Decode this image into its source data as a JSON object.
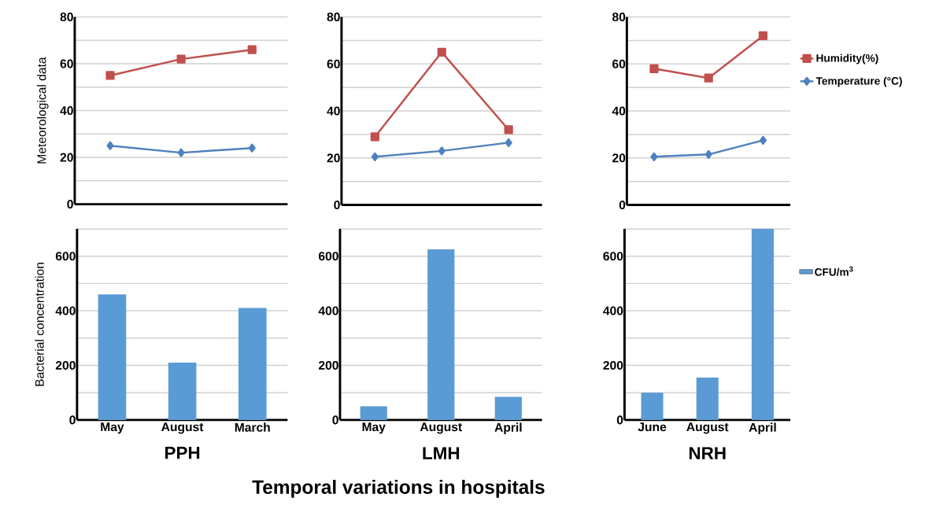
{
  "chart_data": [
    {
      "type": "line",
      "categories": [
        null,
        null,
        null
      ],
      "ylabel": "Meteorological data",
      "ylim": [
        0,
        80
      ],
      "yticks": [
        0,
        {
          "value": 10,
          "label": null
        },
        20,
        {
          "value": 30,
          "label": null
        },
        40,
        {
          "value": 50,
          "label": null
        },
        60,
        {
          "value": 70,
          "label": null
        },
        80
      ],
      "grid": "y",
      "series": [
        {
          "color": "#c0504d",
          "marker": "square",
          "values": [
            55,
            62,
            66
          ]
        },
        {
          "color": "#4f81bd",
          "marker": "diamond",
          "values": [
            25,
            22,
            24
          ]
        }
      ]
    },
    {
      "type": "line",
      "categories": [
        null,
        null,
        null
      ],
      "ylim": [
        0,
        80
      ],
      "yticks": [
        0,
        {
          "value": 10,
          "label": null
        },
        20,
        {
          "value": 30,
          "label": null
        },
        40,
        {
          "value": 50,
          "label": null
        },
        60,
        {
          "value": 70,
          "label": null
        },
        80
      ],
      "grid": "y",
      "series": [
        {
          "color": "#c0504d",
          "marker": "square",
          "values": [
            29,
            65,
            32
          ]
        },
        {
          "color": "#4f81bd",
          "marker": "diamond",
          "values": [
            20.5,
            23,
            26.5
          ]
        }
      ]
    },
    {
      "type": "line",
      "categories": [
        null,
        null,
        null
      ],
      "ylim": [
        0,
        80
      ],
      "yticks": [
        0,
        {
          "value": 10,
          "label": null
        },
        20,
        {
          "value": 30,
          "label": null
        },
        40,
        {
          "value": 50,
          "label": null
        },
        60,
        {
          "value": 70,
          "label": null
        },
        80
      ],
      "grid": "y",
      "legend": "right",
      "series": [
        {
          "name": "Humidity(%)",
          "color": "#c0504d",
          "marker": "square",
          "values": [
            58,
            54,
            72
          ]
        },
        {
          "name": "Temperature (°C)",
          "color": "#4f81bd",
          "marker": "diamond",
          "values": [
            20.5,
            21.5,
            27.5
          ]
        }
      ]
    },
    {
      "type": "bar",
      "categories": [
        "May",
        "August",
        "March"
      ],
      "xlabel": "PPH",
      "ylabel": "Bacterial concentration",
      "ylim": [
        0,
        700
      ],
      "yticks": [
        0,
        {
          "value": 100,
          "label": null
        },
        200,
        {
          "value": 300,
          "label": null
        },
        400,
        {
          "value": 500,
          "label": null
        },
        600,
        {
          "value": 700,
          "label": null
        }
      ],
      "grid": "y",
      "series": [
        {
          "color": "#5b9bd5",
          "values": [
            460,
            210,
            410
          ]
        }
      ]
    },
    {
      "type": "bar",
      "categories": [
        "May",
        "August",
        "April"
      ],
      "xlabel": "LMH",
      "ylim": [
        0,
        700
      ],
      "yticks": [
        0,
        {
          "value": 100,
          "label": null
        },
        200,
        {
          "value": 300,
          "label": null
        },
        400,
        {
          "value": 500,
          "label": null
        },
        600,
        {
          "value": 700,
          "label": null
        }
      ],
      "grid": "y",
      "annotations": [
        "Temporal variations in hospitals"
      ],
      "series": [
        {
          "color": "#5b9bd5",
          "values": [
            50,
            625,
            85
          ]
        }
      ]
    },
    {
      "type": "bar",
      "categories": [
        "June",
        "August",
        "April"
      ],
      "xlabel": "NRH",
      "ylim": [
        0,
        700
      ],
      "yticks": [
        0,
        {
          "value": 100,
          "label": null
        },
        200,
        {
          "value": 300,
          "label": null
        },
        400,
        {
          "value": 500,
          "label": null
        },
        600,
        {
          "value": 700,
          "label": null
        }
      ],
      "grid": "y",
      "legend": "right",
      "series": [
        {
          "name": "CFU/m$^{3}$",
          "color": "#5b9bd5",
          "values": [
            100,
            155,
            700
          ]
        }
      ]
    }
  ]
}
